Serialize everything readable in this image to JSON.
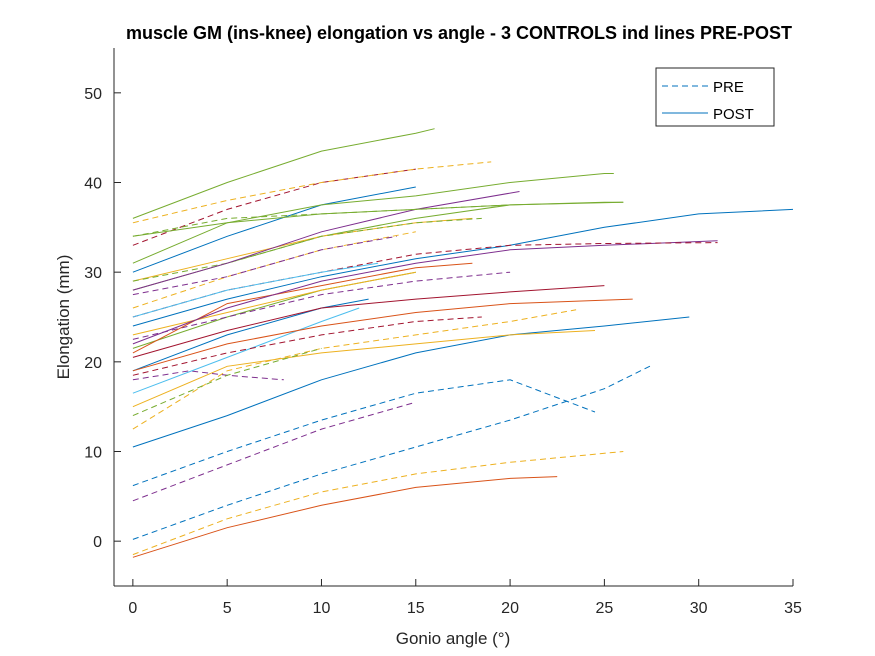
{
  "chart_data": {
    "type": "line",
    "title": "muscle GM (ins-knee) elongation vs angle - 3 CONTROLS ind lines PRE-POST",
    "xlabel": "Gonio angle (°)",
    "ylabel": "Elongation (mm)",
    "xlim": [
      -1,
      35
    ],
    "ylim": [
      -5,
      55
    ],
    "xticks": [
      0,
      5,
      10,
      15,
      20,
      25,
      30,
      35
    ],
    "yticks": [
      0,
      10,
      20,
      30,
      40,
      50
    ],
    "grid": false,
    "legend": {
      "placement": "top-right",
      "entries": [
        {
          "label": "PRE",
          "style": "dashed",
          "color": "#0072BD"
        },
        {
          "label": "POST",
          "style": "solid",
          "color": "#0072BD"
        }
      ]
    },
    "series": [
      {
        "style": "dashed",
        "color": "#0072BD",
        "x": [
          0,
          5,
          10,
          15,
          20,
          25,
          27.5
        ],
        "y": [
          0.2,
          4.0,
          7.5,
          10.5,
          13.5,
          17.0,
          19.6
        ]
      },
      {
        "style": "dashed",
        "color": "#EDB120",
        "x": [
          0,
          5,
          10,
          15,
          20,
          26
        ],
        "y": [
          -1.5,
          2.5,
          5.5,
          7.5,
          8.8,
          10.0
        ]
      },
      {
        "style": "solid",
        "color": "#D95319",
        "x": [
          0,
          5,
          10,
          15,
          20,
          22.5
        ],
        "y": [
          -1.8,
          1.5,
          4.0,
          6.0,
          7.0,
          7.2
        ]
      },
      {
        "style": "dashed",
        "color": "#0072BD",
        "x": [
          0,
          5,
          10,
          15,
          20,
          24.5
        ],
        "y": [
          6.2,
          10.0,
          13.5,
          16.5,
          18.0,
          14.4
        ]
      },
      {
        "style": "dashed",
        "color": "#7E2F8E",
        "x": [
          0,
          5,
          10,
          15
        ],
        "y": [
          4.5,
          8.5,
          12.5,
          15.5
        ]
      },
      {
        "style": "solid",
        "color": "#0072BD",
        "x": [
          0,
          5,
          10,
          15,
          20,
          25,
          29.5
        ],
        "y": [
          10.5,
          14.0,
          18.0,
          21.0,
          23.0,
          24.0,
          25.0
        ]
      },
      {
        "style": "solid",
        "color": "#EDB120",
        "x": [
          0,
          5,
          10,
          15,
          20,
          24.5
        ],
        "y": [
          15.0,
          19.5,
          21.0,
          22.0,
          23.0,
          23.5
        ]
      },
      {
        "style": "dashed",
        "color": "#EDB120",
        "x": [
          0,
          5,
          10,
          15,
          20,
          23.5
        ],
        "y": [
          12.5,
          19.0,
          21.5,
          23.0,
          24.5,
          25.8
        ]
      },
      {
        "style": "dashed",
        "color": "#7E2F8E",
        "x": [
          0,
          3,
          5,
          8
        ],
        "y": [
          18.0,
          19.0,
          18.5,
          18.0
        ]
      },
      {
        "style": "dashed",
        "color": "#77AC30",
        "x": [
          0,
          5,
          10
        ],
        "y": [
          14.0,
          18.5,
          21.5
        ]
      },
      {
        "style": "solid",
        "color": "#4DBEEE",
        "x": [
          0,
          5,
          10,
          12
        ],
        "y": [
          16.5,
          20.5,
          24.5,
          26.0
        ]
      },
      {
        "style": "dashed",
        "color": "#A2142F",
        "x": [
          0,
          5,
          10,
          15,
          18.5
        ],
        "y": [
          18.5,
          21.0,
          23.0,
          24.5,
          25.0
        ]
      },
      {
        "style": "solid",
        "color": "#0072BD",
        "x": [
          0,
          5,
          10,
          12.5
        ],
        "y": [
          19.0,
          23.0,
          26.0,
          27.0
        ]
      },
      {
        "style": "solid",
        "color": "#D95319",
        "x": [
          0,
          5,
          10,
          15,
          20,
          26.5
        ],
        "y": [
          19.0,
          22.0,
          24.0,
          25.5,
          26.5,
          27.0
        ]
      },
      {
        "style": "solid",
        "color": "#A2142F",
        "x": [
          0,
          5,
          10,
          15,
          20,
          25
        ],
        "y": [
          20.5,
          23.5,
          26.0,
          27.0,
          27.8,
          28.5
        ]
      },
      {
        "style": "solid",
        "color": "#77AC30",
        "x": [
          0,
          5,
          10,
          15
        ],
        "y": [
          21.5,
          25.0,
          28.0,
          30.0
        ]
      },
      {
        "style": "dashed",
        "color": "#7E2F8E",
        "x": [
          0,
          5,
          10,
          15,
          20
        ],
        "y": [
          22.5,
          25.0,
          27.5,
          29.0,
          30.0
        ]
      },
      {
        "style": "solid",
        "color": "#EDB120",
        "x": [
          0,
          5,
          10,
          15
        ],
        "y": [
          23.0,
          25.5,
          28.0,
          30.0
        ]
      },
      {
        "style": "solid",
        "color": "#0072BD",
        "x": [
          0,
          5,
          10,
          15,
          20,
          25,
          30,
          35
        ],
        "y": [
          24.0,
          27.0,
          29.5,
          31.5,
          33.0,
          35.0,
          36.5,
          37.0
        ]
      },
      {
        "style": "solid",
        "color": "#D95319",
        "x": [
          0,
          5,
          10,
          15,
          18
        ],
        "y": [
          21.0,
          26.5,
          28.5,
          30.5,
          31.0
        ]
      },
      {
        "style": "solid",
        "color": "#7E2F8E",
        "x": [
          0,
          5,
          10,
          15,
          20,
          25,
          31
        ],
        "y": [
          22.0,
          26.0,
          29.0,
          31.0,
          32.5,
          33.0,
          33.5
        ]
      },
      {
        "style": "dashed",
        "color": "#A2142F",
        "x": [
          0,
          5,
          10,
          15,
          20,
          25,
          31
        ],
        "y": [
          25.0,
          28.0,
          30.0,
          32.0,
          33.0,
          33.2,
          33.3
        ]
      },
      {
        "style": "solid",
        "color": "#4DBEEE",
        "x": [
          0,
          5,
          10,
          13
        ],
        "y": [
          25.0,
          28.0,
          30.0,
          31.0
        ]
      },
      {
        "style": "dashed",
        "color": "#EDB120",
        "x": [
          0,
          5,
          10,
          15
        ],
        "y": [
          26.0,
          29.5,
          32.5,
          34.5
        ]
      },
      {
        "style": "solid",
        "color": "#77AC30",
        "x": [
          0,
          5,
          10,
          15,
          20,
          25,
          26
        ],
        "y": [
          28.0,
          31.0,
          34.0,
          36.0,
          37.5,
          37.8,
          37.8
        ]
      },
      {
        "style": "solid",
        "color": "#EDB120",
        "x": [
          0,
          5,
          10,
          15,
          18
        ],
        "y": [
          29.0,
          31.5,
          34.0,
          35.5,
          36.0
        ]
      },
      {
        "style": "dashed",
        "color": "#77AC30",
        "x": [
          0,
          5,
          10,
          15,
          18.5
        ],
        "y": [
          29.0,
          31.0,
          34.0,
          35.5,
          36.0
        ]
      },
      {
        "style": "solid",
        "color": "#7E2F8E",
        "x": [
          0,
          5,
          10,
          15,
          20.5
        ],
        "y": [
          28.0,
          31.0,
          34.5,
          37.0,
          39.0
        ]
      },
      {
        "style": "dashed",
        "color": "#7E2F8E",
        "x": [
          0,
          5,
          10,
          14
        ],
        "y": [
          27.5,
          29.5,
          32.5,
          34.0
        ]
      },
      {
        "style": "solid",
        "color": "#0072BD",
        "x": [
          0,
          5,
          10,
          15
        ],
        "y": [
          30.0,
          34.0,
          37.5,
          39.5
        ]
      },
      {
        "style": "solid",
        "color": "#77AC30",
        "x": [
          0,
          5,
          10,
          15,
          20,
          25,
          25.5
        ],
        "y": [
          31.0,
          35.5,
          37.5,
          38.5,
          40.0,
          41.0,
          41.0
        ]
      },
      {
        "style": "dashed",
        "color": "#A2142F",
        "x": [
          0,
          5,
          10,
          15
        ],
        "y": [
          33.0,
          37.0,
          40.0,
          41.5
        ]
      },
      {
        "style": "dashed",
        "color": "#77AC30",
        "x": [
          0,
          5,
          10,
          15,
          20
        ],
        "y": [
          34.0,
          36.0,
          36.5,
          37.0,
          37.5
        ]
      },
      {
        "style": "solid",
        "color": "#77AC30",
        "x": [
          0,
          5,
          10,
          15,
          20,
          26
        ],
        "y": [
          34.0,
          35.5,
          36.5,
          37.0,
          37.5,
          37.8
        ]
      },
      {
        "style": "dashed",
        "color": "#EDB120",
        "x": [
          0,
          5,
          10,
          15,
          19
        ],
        "y": [
          35.5,
          38.0,
          40.0,
          41.5,
          42.3
        ]
      },
      {
        "style": "solid",
        "color": "#77AC30",
        "x": [
          0,
          5,
          10,
          15,
          16
        ],
        "y": [
          36.0,
          40.0,
          43.5,
          45.5,
          46.0
        ]
      }
    ]
  }
}
